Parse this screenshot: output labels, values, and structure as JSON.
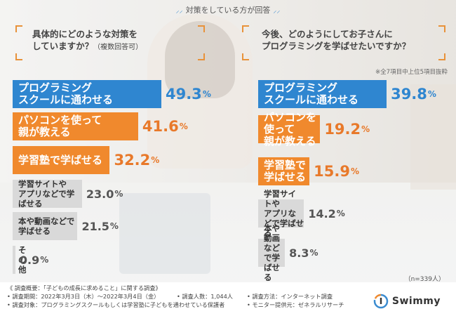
{
  "header": {
    "title": "対策をしている方が回答"
  },
  "q1": {
    "title": "具体的にどのような対策を\nしていますか？",
    "note": "（複数回答可）"
  },
  "q2": {
    "title": "今後、どのようにしてお子さんに\nプログラミングを学ばせたいですか？",
    "note": "※全7項目中上位5項目抜粋"
  },
  "colors": {
    "blue": "#2f86d0",
    "orange": "#f0892d",
    "gray": "#d9d9d9"
  },
  "chart_data": [
    {
      "type": "bar",
      "title": "具体的にどのような対策をしていますか？（複数回答可）",
      "unit": "%",
      "categories": [
        "プログラミングスクールに通わせる",
        "パソコンを使って親が教える",
        "学習塾で学ばせる",
        "学習サイトやアプリなどで学ばせる",
        "本や動画などで学ばせる",
        "その他"
      ],
      "labels": [
        "プログラミング\nスクールに通わせる",
        "パソコンを使って\n親が教える",
        "学習塾で学ばせる",
        "学習サイトや\nアプリなどで学ばせる",
        "本や動画などで学ばせる",
        "その他"
      ],
      "values": [
        49.3,
        41.6,
        32.2,
        23.0,
        21.5,
        0.9
      ],
      "value_labels": [
        "49.3",
        "41.6",
        "32.2",
        "23.0",
        "21.5",
        "0.9"
      ],
      "bar_colors": [
        "blue",
        "orange",
        "orange",
        "gray",
        "gray",
        "gray"
      ]
    },
    {
      "type": "bar",
      "title": "今後、どのようにしてお子さんにプログラミングを学ばせたいですか？",
      "unit": "%",
      "categories": [
        "プログラミングスクールに通わせる",
        "パソコンを使って親が教える",
        "学習塾で学ばせる",
        "学習サイトやアプリなどで学ばせる",
        "本や動画などで学ばせる"
      ],
      "labels": [
        "プログラミング\nスクールに通わせる",
        "パソコンを使って\n親が教える",
        "学習塾で学ばせる",
        "学習サイトや\nアプリなどで学ばせる",
        "本や動画などで学ばせる"
      ],
      "values": [
        39.8,
        19.2,
        15.9,
        14.2,
        8.3
      ],
      "value_labels": [
        "39.8",
        "19.2",
        "15.9",
        "14.2",
        "8.3"
      ],
      "bar_colors": [
        "blue",
        "orange",
        "orange",
        "gray",
        "gray"
      ]
    }
  ],
  "n_label": "（n=339人）",
  "footer": {
    "line1": "《 調査概要：「子どもの成長に求めること」に関する調査》",
    "line2": "• 調査期間：2022年3月3日（木）～2022年3月4日（金）",
    "line2b": "• 調査人数：1,044人",
    "line2c": "• 調査方法：インターネット調査",
    "line3": "• 調査対象：プログラミングスクールもしくは学習塾に子どもを通わせている保護者",
    "line3b": "• モニター提供元：ゼネラルリサーチ"
  },
  "logo": {
    "text": "Swimmy"
  }
}
